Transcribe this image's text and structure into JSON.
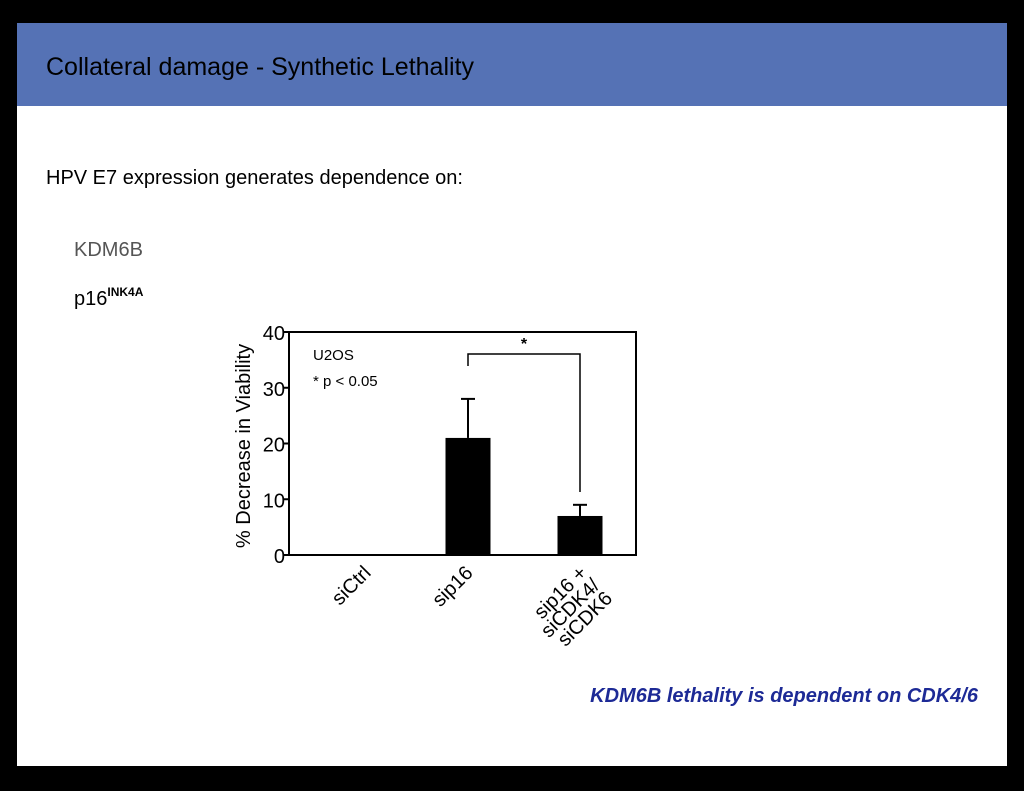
{
  "slide": {
    "title": "Collateral damage - Synthetic Lethality",
    "subtitle": "HPV E7 expression generates dependence  on:",
    "item1": "KDM6B",
    "item2_main": "p16",
    "item2_sup": "INK4A",
    "conclusion": "KDM6B lethality is dependent  on CDK4/6"
  },
  "colors": {
    "title_bar": "#5572b5",
    "conclusion_text": "#1d2a96",
    "bar_fill": "#000000"
  },
  "chart_data": {
    "type": "bar",
    "ylabel": "% Decrease in Viability",
    "ylim": [
      0,
      40
    ],
    "yticks": [
      "0",
      "10",
      "20",
      "30",
      "40"
    ],
    "categories": [
      [
        "siCtrl"
      ],
      [
        "sip16"
      ],
      [
        "sip16 +",
        "siCDK4/",
        "siCDK6"
      ]
    ],
    "values": [
      0,
      21,
      7
    ],
    "error": [
      0,
      7,
      2
    ],
    "annotations": {
      "cell_line": "U2OS",
      "legend": "* p < 0.05",
      "significance": "*",
      "significance_between": [
        1,
        2
      ]
    }
  }
}
